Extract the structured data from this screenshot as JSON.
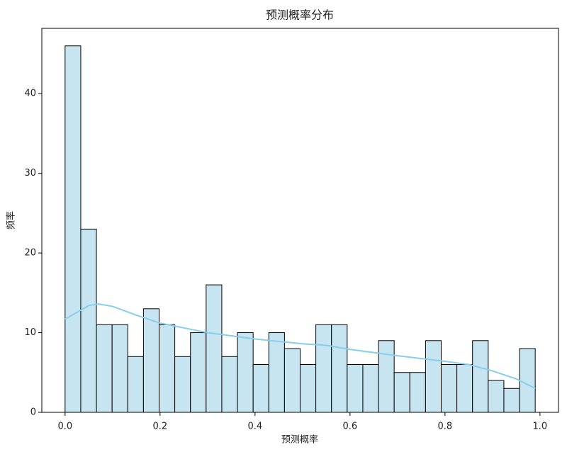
{
  "chart_data": {
    "type": "histogram",
    "title": "预测概率分布",
    "x_label": "预测概率",
    "y_label": "频率",
    "bins": [
      0,
      0.033,
      0.066,
      0.099,
      0.132,
      0.165,
      0.198,
      0.231,
      0.264,
      0.297,
      0.33,
      0.363,
      0.396,
      0.429,
      0.462,
      0.495,
      0.528,
      0.561,
      0.594,
      0.627,
      0.66,
      0.693,
      0.726,
      0.759,
      0.792,
      0.825,
      0.858,
      0.891,
      0.924,
      0.957,
      0.99
    ],
    "values": [
      46,
      23,
      11,
      11,
      7,
      13,
      11,
      7,
      10,
      16,
      7,
      10,
      6,
      10,
      8,
      6,
      11,
      11,
      6,
      6,
      9,
      5,
      5,
      9,
      6,
      6,
      9,
      4,
      3,
      8
    ],
    "color": "#c6e5f1",
    "edge_color": "#000000",
    "kde": {
      "color": "#87ceeb",
      "x": [
        0,
        0.05,
        0.07,
        0.1,
        0.15,
        0.2,
        0.3,
        0.4,
        0.5,
        0.55,
        0.6,
        0.7,
        0.8,
        0.85,
        0.9,
        0.95,
        0.99
      ],
      "y": [
        11.7,
        13.4,
        13.6,
        13.3,
        12.2,
        11.2,
        10.0,
        9.2,
        8.6,
        8.4,
        7.9,
        7.1,
        6.4,
        6.0,
        5.2,
        4.2,
        3.0
      ]
    },
    "xlim": [
      -0.049,
      1.039
    ],
    "ylim": [
      0,
      48.2
    ],
    "xticks": [
      {
        "value": 0,
        "label": "0.0"
      },
      0.2,
      0.4,
      0.6,
      0.8,
      {
        "value": 1,
        "label": "1.0"
      }
    ],
    "yticks": [
      0,
      10,
      20,
      30,
      40
    ]
  }
}
